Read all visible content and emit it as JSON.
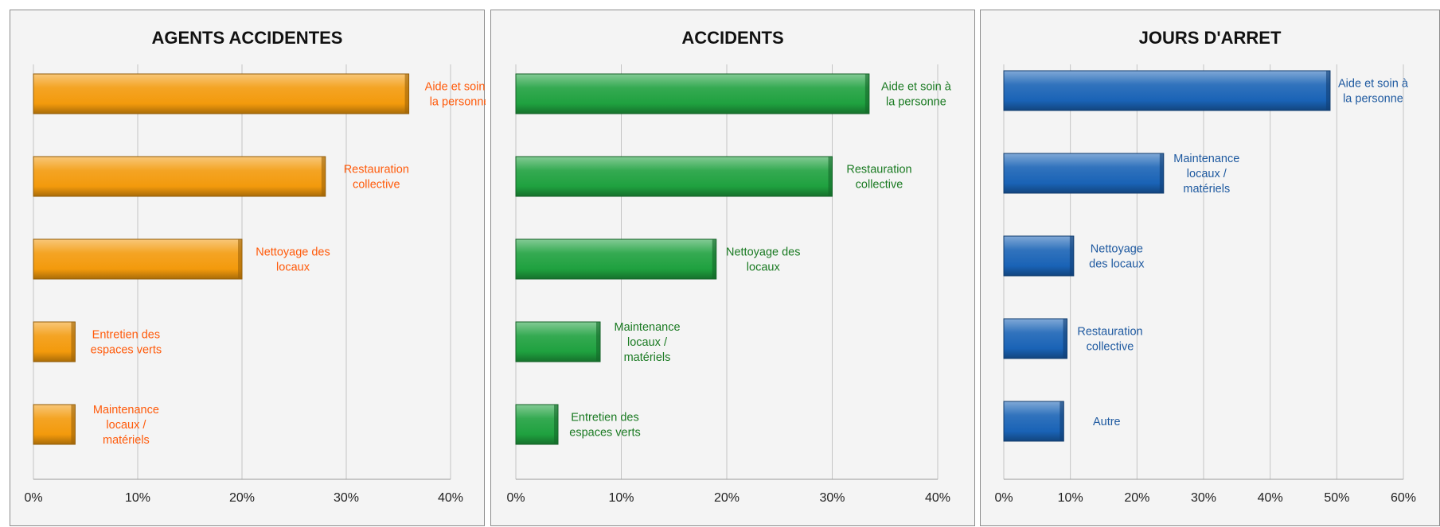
{
  "chart_data": [
    {
      "type": "bar",
      "title": "AGENTS ACCIDENTES",
      "color": "#f39a0c",
      "label_color": "#ff5a0a",
      "xlim": [
        0,
        40
      ],
      "ticks": [
        "0%",
        "10%",
        "20%",
        "30%",
        "40%"
      ],
      "categories": [
        [
          "Aide et soin à",
          "la personne"
        ],
        [
          "Restauration",
          "collective"
        ],
        [
          "Nettoyage des",
          "locaux"
        ],
        [
          "Entretien des",
          "espaces verts"
        ],
        [
          "Maintenance",
          "locaux /",
          "matériels"
        ]
      ],
      "values": [
        36,
        28,
        20,
        4,
        4
      ]
    },
    {
      "type": "bar",
      "title": "ACCIDENTS",
      "color": "#1fa13f",
      "label_color": "#1a7a22",
      "xlim": [
        0,
        40
      ],
      "ticks": [
        "0%",
        "10%",
        "20%",
        "30%",
        "40%"
      ],
      "categories": [
        [
          "Aide et soin à",
          "la personne"
        ],
        [
          "Restauration",
          "collective"
        ],
        [
          "Nettoyage des",
          "locaux"
        ],
        [
          "Maintenance",
          "locaux /",
          "matériels"
        ],
        [
          "Entretien des",
          "espaces verts"
        ]
      ],
      "values": [
        33.5,
        30,
        19,
        8,
        4
      ]
    },
    {
      "type": "bar",
      "title": "JOURS D'ARRET",
      "color": "#1a63b6",
      "label_color": "#1f5aa0",
      "xlim": [
        0,
        60
      ],
      "ticks": [
        "0%",
        "10%",
        "20%",
        "30%",
        "40%",
        "50%",
        "60%"
      ],
      "categories": [
        [
          "Aide et soin à",
          "la personne"
        ],
        [
          "Maintenance",
          "locaux /",
          "matériels"
        ],
        [
          "Nettoyage",
          "des locaux"
        ],
        [
          "Restauration",
          "collective"
        ],
        [
          "Autre"
        ]
      ],
      "values": [
        49,
        24,
        10.5,
        9.5,
        9
      ]
    }
  ]
}
